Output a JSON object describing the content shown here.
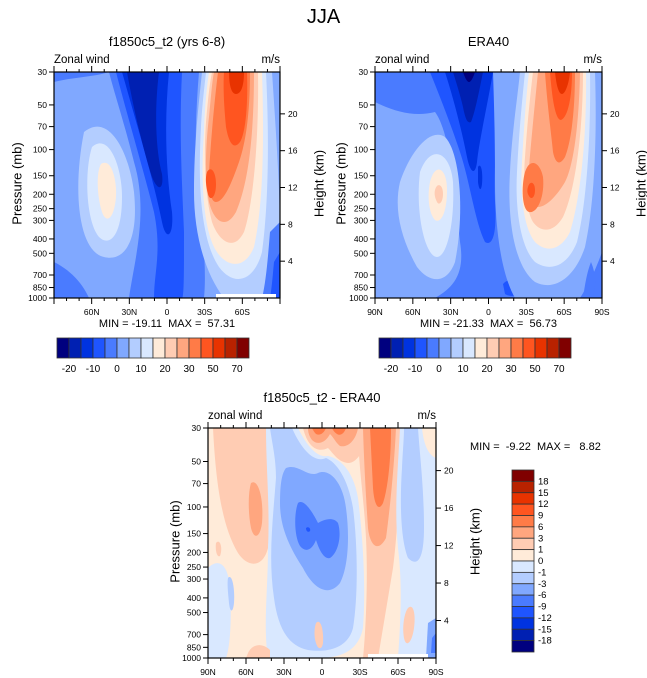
{
  "figure_title": "JJA",
  "colormaps": {
    "absolute": [
      "#00007f",
      "#0020b2",
      "#0033e0",
      "#1f55ff",
      "#4a7bff",
      "#80a8ff",
      "#b3cdff",
      "#d9e8ff",
      "#ffebd9",
      "#ffccb3",
      "#ffa67f",
      "#ff7b47",
      "#ff5520",
      "#e83300",
      "#b82200",
      "#800000"
    ],
    "difference": [
      "#00007f",
      "#0020b2",
      "#0033e0",
      "#1f55ff",
      "#4a7bff",
      "#80a8ff",
      "#b3cdff",
      "#d9e8ff",
      "#ffebd9",
      "#ffccb3",
      "#ffa67f",
      "#ff7b47",
      "#ff5520",
      "#e83300",
      "#b82200",
      "#800000"
    ]
  },
  "chart_data": [
    {
      "type": "heatmap",
      "title": "f1850c5_t2 (yrs 6-8)",
      "left_string": "Zonal wind",
      "right_string": "m/s",
      "ylabel": "Pressure (mb)",
      "ylabel_right": "Height (km)",
      "xlabel": "",
      "x_ticks": [
        "60N",
        "30N",
        "0",
        "30S",
        "60S"
      ],
      "y_ticks": [
        "30",
        "50",
        "70",
        "100",
        "150",
        "200",
        "250",
        "300",
        "400",
        "500",
        "700",
        "850",
        "1000"
      ],
      "y_right_ticks": [
        "20",
        "16",
        "12",
        "8",
        "4"
      ],
      "xlim": [
        "90N",
        "90S"
      ],
      "ylim": [
        1000,
        30
      ],
      "min_label": "MIN = -19.11  MAX =  57.31",
      "min": -19.11,
      "max": 57.31,
      "features": [
        {
          "name": "easterly-jet-core",
          "lat": "15N",
          "pressure_range": [
            30,
            200
          ],
          "value_approx": -20
        },
        {
          "name": "westerly-jet-upper",
          "lat": "45S",
          "pressure": 30,
          "value_approx": 60
        },
        {
          "name": "westerly-jet-subtropical",
          "lat": "30S",
          "pressure": 200,
          "value_approx": 50
        },
        {
          "name": "nh-westerly-jet",
          "lat": "45N",
          "pressure": 200,
          "value_approx": 20
        }
      ],
      "colorbar": {
        "orientation": "horizontal",
        "labels": [
          "-20",
          "-10",
          "0",
          "10",
          "20",
          "30",
          "50",
          "70"
        ]
      }
    },
    {
      "type": "heatmap",
      "title": "ERA40",
      "left_string": "zonal wind",
      "right_string": "m/s",
      "ylabel": "Pressure (mb)",
      "ylabel_right": "Height (km)",
      "x_ticks": [
        "90N",
        "60N",
        "30N",
        "0",
        "30S",
        "60S",
        "90S"
      ],
      "y_ticks": [
        "30",
        "50",
        "70",
        "100",
        "150",
        "200",
        "250",
        "300",
        "400",
        "500",
        "700",
        "850",
        "1000"
      ],
      "y_right_ticks": [
        "20",
        "16",
        "12",
        "8",
        "4"
      ],
      "xlim": [
        "90N",
        "90S"
      ],
      "ylim": [
        1000,
        30
      ],
      "min_label": "MIN = -21.33  MAX =  56.73",
      "min": -21.33,
      "max": 56.73,
      "features": [
        {
          "name": "easterly-jet-core",
          "lat": "20N",
          "pressure_range": [
            30,
            150
          ],
          "value_approx": -22
        },
        {
          "name": "westerly-jet-upper",
          "lat": "50S",
          "pressure": 30,
          "value_approx": 55
        },
        {
          "name": "westerly-jet-subtropical",
          "lat": "30S",
          "pressure": 200,
          "value_approx": 50
        },
        {
          "name": "nh-westerly-jet",
          "lat": "45N",
          "pressure": 200,
          "value_approx": 20
        }
      ],
      "colorbar": {
        "orientation": "horizontal",
        "labels": [
          "-20",
          "-10",
          "0",
          "10",
          "20",
          "30",
          "50",
          "70"
        ]
      }
    },
    {
      "type": "heatmap",
      "title": "f1850c5_t2 - ERA40",
      "left_string": "zonal wind",
      "right_string": "m/s",
      "ylabel": "Pressure (mb)",
      "ylabel_right": "Height (km)",
      "x_ticks": [
        "90N",
        "60N",
        "30N",
        "0",
        "30S",
        "60S",
        "90S"
      ],
      "y_ticks": [
        "30",
        "50",
        "70",
        "100",
        "150",
        "200",
        "250",
        "300",
        "400",
        "500",
        "700",
        "850",
        "1000"
      ],
      "y_right_ticks": [
        "20",
        "16",
        "12",
        "8",
        "4"
      ],
      "xlim": [
        "90N",
        "90S"
      ],
      "ylim": [
        1000,
        30
      ],
      "min_label": "MIN =  -9.22  MAX =   8.82",
      "min": -9.22,
      "max": 8.82,
      "colorbar": {
        "orientation": "vertical",
        "labels": [
          "18",
          "15",
          "12",
          "9",
          "6",
          "3",
          "1",
          "0",
          "-1",
          "-3",
          "-6",
          "-9",
          "-12",
          "-15",
          "-18"
        ]
      }
    }
  ]
}
